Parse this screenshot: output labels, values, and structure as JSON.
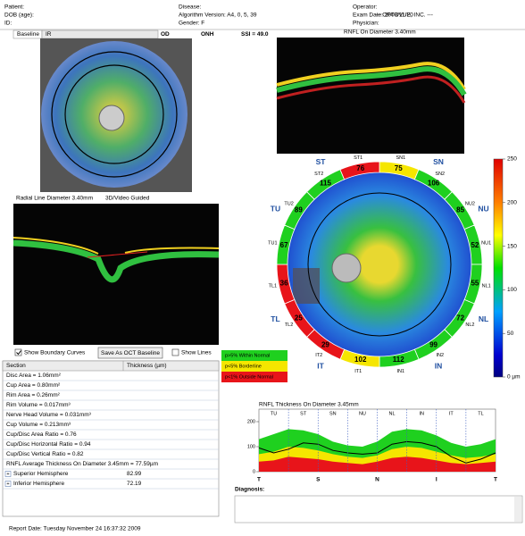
{
  "header": {
    "col1": [
      "Patient:",
      "DOB (age):",
      "ID:"
    ],
    "col2": [
      "Disease:",
      "Algorithm Version: A4, 0, 5, 39",
      "Gender: F"
    ],
    "col3": [
      "Operator:",
      "Exam Date: 2009/11/20",
      "Physician:"
    ],
    "company": "--- OPTOVUE, INC. ---"
  },
  "tabs": [
    "Baseline",
    "IR"
  ],
  "eye": "OD",
  "scan": "ONH",
  "ssi": "SSI = 49.0",
  "oct_top_title": "RNFL On Diameter 3.40mm",
  "oct_left_title": "Radial Line Diameter 3.40mm",
  "guided": "3D/Video Guided",
  "map": {
    "sectors": [
      {
        "code": "SN1",
        "value": 75,
        "color": "#f5e600"
      },
      {
        "code": "SN2",
        "value": 106,
        "color": "#1fd01f"
      },
      {
        "code": "NU2",
        "value": 85,
        "color": "#1fd01f"
      },
      {
        "code": "NU1",
        "value": 52,
        "color": "#1fd01f"
      },
      {
        "code": "NL1",
        "value": 55,
        "color": "#1fd01f"
      },
      {
        "code": "NL2",
        "value": 72,
        "color": "#1fd01f"
      },
      {
        "code": "IN2",
        "value": 99,
        "color": "#1fd01f"
      },
      {
        "code": "IN1",
        "value": 112,
        "color": "#1fd01f"
      },
      {
        "code": "IT1",
        "value": 102,
        "color": "#f5e600"
      },
      {
        "code": "IT2",
        "value": 29,
        "color": "#e8141a"
      },
      {
        "code": "TL2",
        "value": 25,
        "color": "#e8141a"
      },
      {
        "code": "TL1",
        "value": 36,
        "color": "#e8141a"
      },
      {
        "code": "TU1",
        "value": 67,
        "color": "#1fd01f"
      },
      {
        "code": "TU2",
        "value": 89,
        "color": "#1fd01f"
      },
      {
        "code": "ST2",
        "value": 115,
        "color": "#1fd01f"
      },
      {
        "code": "ST1",
        "value": 76,
        "color": "#e8141a"
      }
    ],
    "quadrants": [
      "SN",
      "NU",
      "NL",
      "IN",
      "IT",
      "TL",
      "TU",
      "ST"
    ]
  },
  "colorbar": {
    "lim": [
      0,
      250
    ],
    "ticks": [
      250,
      200,
      150,
      100,
      50,
      {
        "value": 0,
        "label": "0 µm"
      }
    ]
  },
  "legend": [
    {
      "label": "p>5% Within Normal",
      "color": "#1fd01f"
    },
    {
      "label": "p<5% Borderline",
      "color": "#f5e600"
    },
    {
      "label": "p<1% Outside Normal",
      "color": "#e8141a"
    }
  ],
  "controls": {
    "boundary": "Show Boundary Curves",
    "save": "Save As OCT Baseline",
    "lines": "Show Lines"
  },
  "table": {
    "header": [
      "Section",
      "Thickness (µm)"
    ],
    "rows": [
      "Disc Area = 1.06mm²",
      "Cup Area = 0.80mm²",
      "Rim Area = 0.26mm²",
      "Rim Volume = 0.017mm³",
      "Nerve Head Volume = 0.031mm³",
      "Cup Volume = 0.213mm³",
      "Cup/Disc Area Ratio = 0.76",
      "Cup/Disc Horizontal Ratio = 0.94",
      "Cup/Disc Vertical Ratio = 0.82",
      "RNFL Average Thickness On Diameter 3.45mm = 77.59µm"
    ],
    "hemispheres": [
      [
        "Superior Hemisphere",
        82.99
      ],
      [
        "Inferior Hemisphere",
        72.19
      ]
    ]
  },
  "tsnit": {
    "title": "RNFL Thickness On Diameter 3.45mm",
    "sectors": [
      "TU",
      "ST",
      "SN",
      "NU",
      "NL",
      "IN",
      "IT",
      "TL"
    ],
    "xlabels": [
      "T",
      "S",
      "N",
      "I",
      "T"
    ],
    "ylim": [
      0,
      250
    ],
    "yticks": [
      0,
      100,
      200
    ],
    "bands": [
      {
        "color": "#1fd01f",
        "values": [
          130,
          150,
          170,
          165,
          150,
          120,
          105,
          100,
          120,
          160,
          170,
          165,
          145,
          115,
          100,
          110,
          130
        ]
      },
      {
        "color": "#f5e600",
        "values": [
          70,
          80,
          100,
          95,
          85,
          70,
          60,
          55,
          65,
          90,
          100,
          95,
          80,
          65,
          55,
          60,
          70
        ]
      },
      {
        "color": "#e8141a",
        "values": [
          40,
          45,
          60,
          55,
          50,
          40,
          35,
          30,
          40,
          55,
          60,
          55,
          45,
          35,
          30,
          35,
          40
        ]
      }
    ],
    "line": {
      "color": "#000000",
      "values": [
        95,
        75,
        90,
        115,
        110,
        85,
        75,
        70,
        75,
        110,
        120,
        115,
        100,
        60,
        35,
        50,
        75
      ]
    }
  },
  "diagnosis": "Diagnosis:",
  "report_date": "Report Date: Tuesday November 24 16:37:32 2009"
}
